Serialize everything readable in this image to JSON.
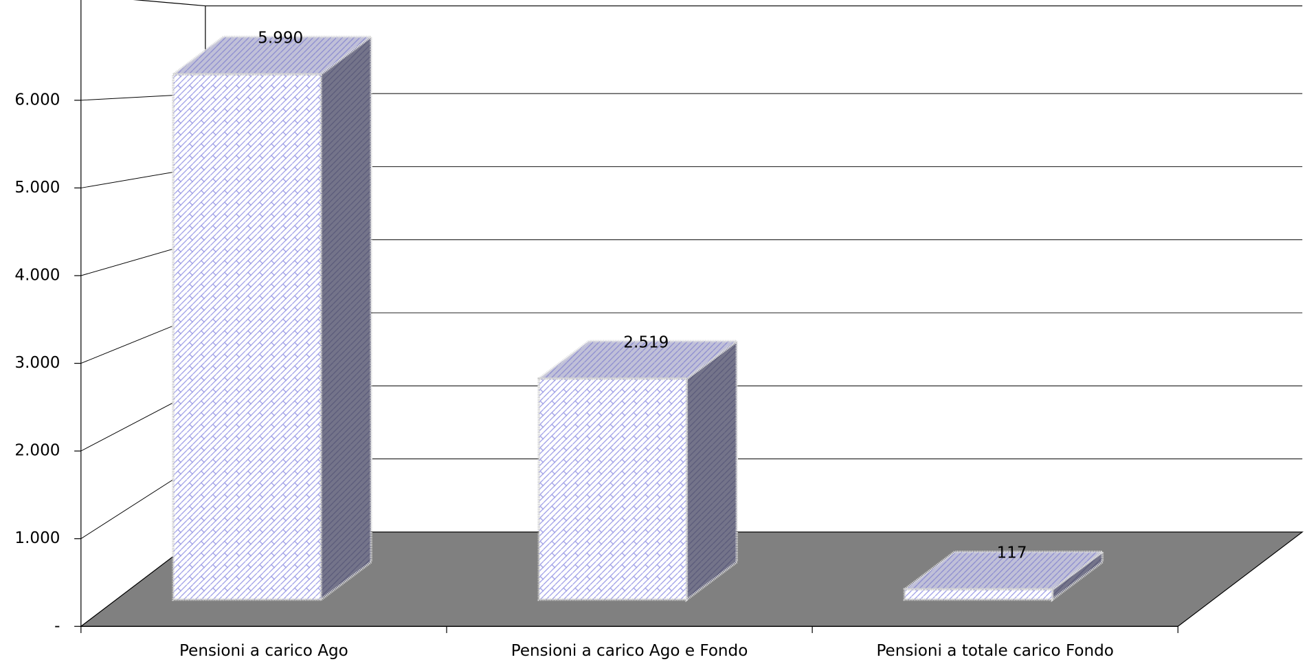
{
  "chart_data": {
    "type": "bar3d",
    "categories": [
      "Pensioni a carico Ago",
      "Pensioni a carico Ago e Fondo",
      "Pensioni a totale carico Fondo"
    ],
    "values": [
      5990,
      2519,
      117
    ],
    "value_labels": [
      "5.990",
      "2.519",
      "117"
    ],
    "ylim": [
      0,
      7200
    ],
    "yticks": [
      {
        "value": 0,
        "label": "-"
      },
      {
        "value": 1000,
        "label": "1.000"
      },
      {
        "value": 2000,
        "label": "2.000"
      },
      {
        "value": 3000,
        "label": "3.000"
      },
      {
        "value": 4000,
        "label": "4.000"
      },
      {
        "value": 5000,
        "label": "5.000"
      },
      {
        "value": 6000,
        "label": "6.000"
      }
    ],
    "grid": true,
    "floor_color": "#808080"
  }
}
